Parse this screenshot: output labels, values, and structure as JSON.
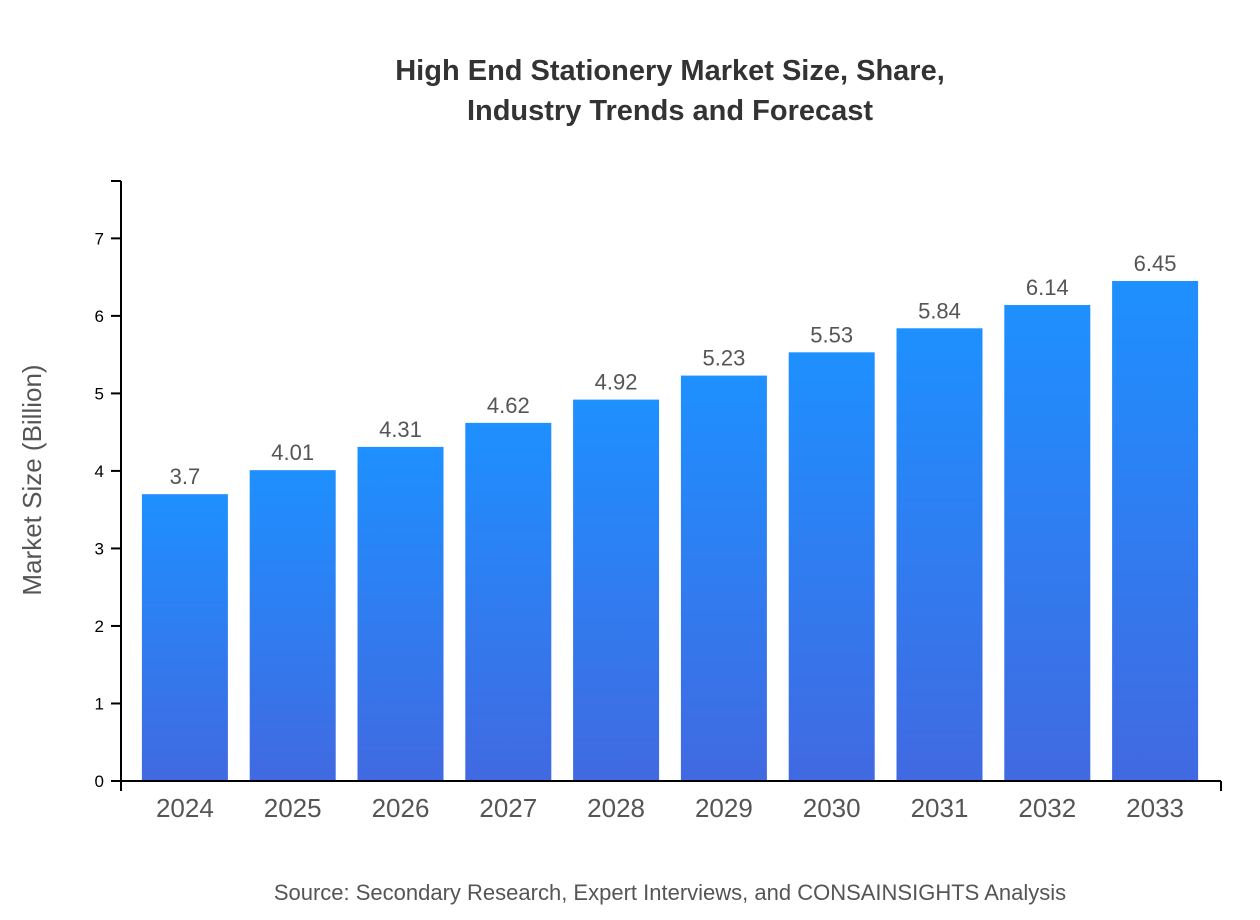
{
  "chart_data": {
    "type": "bar",
    "title_lines": [
      "High End Stationery Market Size, Share,",
      "Industry Trends and Forecast"
    ],
    "xlabel": "",
    "ylabel": "Market Size (Billion)",
    "categories": [
      "2024",
      "2025",
      "2026",
      "2027",
      "2028",
      "2029",
      "2030",
      "2031",
      "2032",
      "2033"
    ],
    "values": [
      3.7,
      4.01,
      4.31,
      4.62,
      4.92,
      5.23,
      5.53,
      5.84,
      6.14,
      6.45
    ],
    "data_labels": [
      "3.7",
      "4.01",
      "4.31",
      "4.62",
      "4.92",
      "5.23",
      "5.53",
      "5.84",
      "6.14",
      "6.45"
    ],
    "yticks": [
      0,
      1,
      2,
      3,
      4,
      5,
      6,
      7
    ],
    "ylim": [
      0,
      7.74
    ],
    "grid": false,
    "colors": {
      "bar_top": "#1e90ff",
      "bar_bottom": "#4169e1",
      "text": "#333333",
      "label": "#555555"
    },
    "source": "Source: Secondary Research, Expert Interviews, and CONSAINSIGHTS Analysis"
  }
}
